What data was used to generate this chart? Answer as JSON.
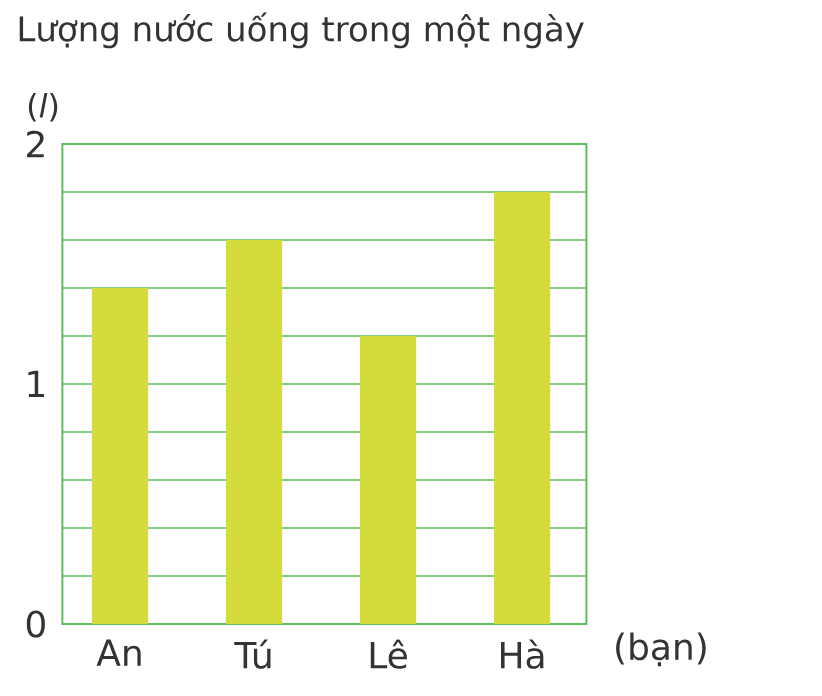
{
  "chart_data": {
    "type": "bar",
    "title": "Lượng nước uống trong một ngày",
    "ylabel": "(*l*)",
    "xlabel": "(bạn)",
    "categories": [
      "An",
      "Tú",
      "Lê",
      "Hà"
    ],
    "values": [
      1.4,
      1.6,
      1.2,
      1.8
    ],
    "color": "#d4dc3c",
    "ylim": [
      0,
      2
    ],
    "yticks": [
      0,
      {
        "value": 0.2,
        "label": null
      },
      {
        "value": 0.4,
        "label": null
      },
      {
        "value": 0.6,
        "label": null
      },
      {
        "value": 0.8,
        "label": null
      },
      1,
      {
        "value": 1.2,
        "label": null
      },
      {
        "value": 1.4,
        "label": null
      },
      {
        "value": 1.6,
        "label": null
      },
      {
        "value": 1.8,
        "label": null
      },
      2
    ],
    "grid": "y"
  }
}
